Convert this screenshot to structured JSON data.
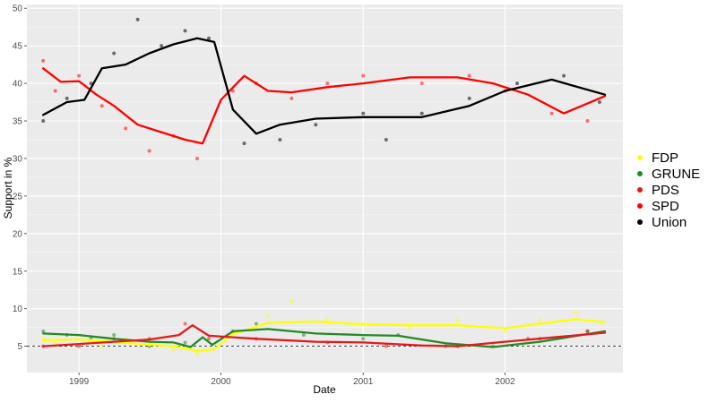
{
  "chart_data": {
    "type": "scatter",
    "title": "",
    "xlabel": "Date",
    "ylabel": "Support in %",
    "xlim": [
      "1998-08-20",
      "2002-10-31"
    ],
    "ylim": [
      1.5,
      50.5
    ],
    "grid": true,
    "legend_position": "right",
    "x_ticks": [
      {
        "label": "1999",
        "date": "1999-01-01"
      },
      {
        "label": "2000",
        "date": "2000-01-01"
      },
      {
        "label": "2001",
        "date": "2001-01-01"
      },
      {
        "label": "2002",
        "date": "2002-01-01"
      }
    ],
    "y_ticks": [
      5,
      10,
      15,
      20,
      25,
      30,
      35,
      40,
      45,
      50
    ],
    "reference_line": {
      "y": 5,
      "style": "dashed",
      "color": "#000000"
    },
    "series": [
      {
        "name": "FDP",
        "color": "#ffff00",
        "trend": [
          [
            "1998-10-01",
            5.8
          ],
          [
            "1999-01-01",
            5.9
          ],
          [
            "1999-04-01",
            5.6
          ],
          [
            "1999-07-01",
            5.2
          ],
          [
            "1999-09-01",
            5.0
          ],
          [
            "1999-11-01",
            4.4
          ],
          [
            "1999-12-15",
            4.6
          ],
          [
            "2000-02-01",
            6.6
          ],
          [
            "2000-05-01",
            8.1
          ],
          [
            "2000-09-01",
            8.3
          ],
          [
            "2001-01-01",
            7.9
          ],
          [
            "2001-05-01",
            7.8
          ],
          [
            "2001-09-01",
            7.8
          ],
          [
            "2002-01-01",
            7.4
          ],
          [
            "2002-04-01",
            8.0
          ],
          [
            "2002-07-01",
            8.6
          ],
          [
            "2002-09-15",
            8.2
          ]
        ],
        "points": [
          [
            "1998-10-01",
            6.0
          ],
          [
            "1998-11-01",
            5.5
          ],
          [
            "1999-01-01",
            6.5
          ],
          [
            "1999-03-01",
            5.0
          ],
          [
            "1999-05-01",
            6.0
          ],
          [
            "1999-07-01",
            5.5
          ],
          [
            "1999-09-01",
            4.5
          ],
          [
            "1999-11-01",
            4.0
          ],
          [
            "2000-02-01",
            7.0
          ],
          [
            "2000-05-01",
            9.0
          ],
          [
            "2000-07-01",
            11.0
          ],
          [
            "2000-10-01",
            8.5
          ],
          [
            "2001-01-01",
            8.0
          ],
          [
            "2001-05-01",
            7.5
          ],
          [
            "2001-09-01",
            8.5
          ],
          [
            "2002-01-01",
            7.0
          ],
          [
            "2002-04-01",
            8.5
          ],
          [
            "2002-07-01",
            9.5
          ]
        ]
      },
      {
        "name": "GRUNE",
        "color": "#228b22",
        "trend": [
          [
            "1998-10-01",
            6.7
          ],
          [
            "1999-01-01",
            6.5
          ],
          [
            "1999-04-01",
            6.0
          ],
          [
            "1999-07-01",
            5.6
          ],
          [
            "1999-09-01",
            5.5
          ],
          [
            "1999-10-15",
            4.9
          ],
          [
            "1999-11-15",
            6.2
          ],
          [
            "1999-12-10",
            5.2
          ],
          [
            "2000-02-01",
            7.0
          ],
          [
            "2000-05-01",
            7.3
          ],
          [
            "2000-09-01",
            6.7
          ],
          [
            "2001-01-01",
            6.5
          ],
          [
            "2001-04-01",
            6.4
          ],
          [
            "2001-08-01",
            5.4
          ],
          [
            "2001-12-01",
            4.9
          ],
          [
            "2002-04-01",
            5.6
          ],
          [
            "2002-09-15",
            7.0
          ]
        ],
        "points": [
          [
            "1998-10-01",
            7.0
          ],
          [
            "1998-12-01",
            6.5
          ],
          [
            "1999-02-01",
            6.0
          ],
          [
            "1999-04-01",
            6.5
          ],
          [
            "1999-07-01",
            5.0
          ],
          [
            "1999-10-01",
            5.5
          ],
          [
            "2000-02-01",
            7.0
          ],
          [
            "2000-04-01",
            8.0
          ],
          [
            "2000-08-01",
            6.5
          ],
          [
            "2001-01-01",
            6.0
          ],
          [
            "2001-04-01",
            6.5
          ],
          [
            "2001-08-01",
            5.0
          ],
          [
            "2001-12-01",
            5.0
          ],
          [
            "2002-04-01",
            6.0
          ],
          [
            "2002-08-01",
            7.0
          ]
        ]
      },
      {
        "name": "PDS",
        "color": "#e31a1c",
        "trend": [
          [
            "1998-10-01",
            5.0
          ],
          [
            "1999-01-01",
            5.3
          ],
          [
            "1999-04-01",
            5.6
          ],
          [
            "1999-07-01",
            5.9
          ],
          [
            "1999-09-15",
            6.5
          ],
          [
            "1999-10-20",
            7.8
          ],
          [
            "1999-12-01",
            6.4
          ],
          [
            "2000-04-01",
            6.0
          ],
          [
            "2000-09-01",
            5.6
          ],
          [
            "2001-01-01",
            5.5
          ],
          [
            "2001-06-01",
            5.1
          ],
          [
            "2001-09-01",
            5.0
          ],
          [
            "2002-01-01",
            5.6
          ],
          [
            "2002-06-01",
            6.3
          ],
          [
            "2002-09-15",
            6.8
          ]
        ],
        "points": [
          [
            "1998-10-01",
            5.0
          ],
          [
            "1999-01-01",
            5.0
          ],
          [
            "1999-04-01",
            6.0
          ],
          [
            "1999-07-01",
            6.0
          ],
          [
            "1999-10-01",
            8.0
          ],
          [
            "1999-12-01",
            6.0
          ],
          [
            "2000-04-01",
            6.0
          ],
          [
            "2000-10-01",
            5.5
          ],
          [
            "2001-03-01",
            5.0
          ],
          [
            "2001-09-01",
            5.0
          ],
          [
            "2002-03-01",
            6.0
          ],
          [
            "2002-08-01",
            7.0
          ]
        ]
      },
      {
        "name": "SPD",
        "color": "#ff0000",
        "trend": [
          [
            "1998-10-01",
            42.0
          ],
          [
            "1998-11-15",
            40.2
          ],
          [
            "1999-01-01",
            40.3
          ],
          [
            "1999-02-15",
            38.5
          ],
          [
            "1999-04-01",
            37.0
          ],
          [
            "1999-06-01",
            34.5
          ],
          [
            "1999-08-01",
            33.5
          ],
          [
            "1999-10-01",
            32.5
          ],
          [
            "1999-11-15",
            32.0
          ],
          [
            "2000-01-01",
            37.8
          ],
          [
            "2000-03-01",
            41.0
          ],
          [
            "2000-05-01",
            39.0
          ],
          [
            "2000-07-01",
            38.8
          ],
          [
            "2000-10-01",
            39.5
          ],
          [
            "2001-01-01",
            40.0
          ],
          [
            "2001-05-01",
            40.8
          ],
          [
            "2001-09-01",
            40.8
          ],
          [
            "2001-12-01",
            40.0
          ],
          [
            "2002-03-01",
            38.5
          ],
          [
            "2002-06-01",
            36.0
          ],
          [
            "2002-09-15",
            38.3
          ]
        ],
        "points": [
          [
            "1998-10-01",
            43.0
          ],
          [
            "1998-11-01",
            39.0
          ],
          [
            "1999-01-01",
            41.0
          ],
          [
            "1999-03-01",
            37.0
          ],
          [
            "1999-05-01",
            34.0
          ],
          [
            "1999-07-01",
            31.0
          ],
          [
            "1999-09-01",
            33.0
          ],
          [
            "1999-11-01",
            30.0
          ],
          [
            "2000-02-01",
            39.0
          ],
          [
            "2000-04-01",
            40.0
          ],
          [
            "2000-07-01",
            38.0
          ],
          [
            "2000-10-01",
            40.0
          ],
          [
            "2001-01-01",
            41.0
          ],
          [
            "2001-06-01",
            40.0
          ],
          [
            "2001-10-01",
            41.0
          ],
          [
            "2002-01-01",
            39.0
          ],
          [
            "2002-05-01",
            36.0
          ],
          [
            "2002-08-01",
            35.0
          ]
        ]
      },
      {
        "name": "Union",
        "color": "#000000",
        "trend": [
          [
            "1998-10-01",
            35.8
          ],
          [
            "1998-12-01",
            37.5
          ],
          [
            "1999-01-15",
            37.8
          ],
          [
            "1999-03-01",
            42.0
          ],
          [
            "1999-05-01",
            42.5
          ],
          [
            "1999-07-01",
            44.0
          ],
          [
            "1999-09-01",
            45.2
          ],
          [
            "1999-11-01",
            46.0
          ],
          [
            "1999-12-15",
            45.5
          ],
          [
            "2000-02-01",
            36.5
          ],
          [
            "2000-04-01",
            33.3
          ],
          [
            "2000-06-01",
            34.5
          ],
          [
            "2000-09-01",
            35.3
          ],
          [
            "2001-01-01",
            35.5
          ],
          [
            "2001-06-01",
            35.5
          ],
          [
            "2001-10-01",
            37.0
          ],
          [
            "2002-01-01",
            39.0
          ],
          [
            "2002-05-01",
            40.5
          ],
          [
            "2002-09-15",
            38.5
          ]
        ],
        "points": [
          [
            "1998-10-01",
            35.0
          ],
          [
            "1998-12-01",
            38.0
          ],
          [
            "1999-02-01",
            40.0
          ],
          [
            "1999-04-01",
            44.0
          ],
          [
            "1999-06-01",
            48.5
          ],
          [
            "1999-08-01",
            45.0
          ],
          [
            "1999-10-01",
            47.0
          ],
          [
            "1999-12-01",
            46.0
          ],
          [
            "2000-03-01",
            32.0
          ],
          [
            "2000-06-01",
            32.5
          ],
          [
            "2000-09-01",
            34.5
          ],
          [
            "2001-01-01",
            36.0
          ],
          [
            "2001-03-01",
            32.5
          ],
          [
            "2001-06-01",
            36.0
          ],
          [
            "2001-10-01",
            38.0
          ],
          [
            "2002-02-01",
            40.0
          ],
          [
            "2002-06-01",
            41.0
          ],
          [
            "2002-09-01",
            37.5
          ]
        ]
      }
    ]
  }
}
